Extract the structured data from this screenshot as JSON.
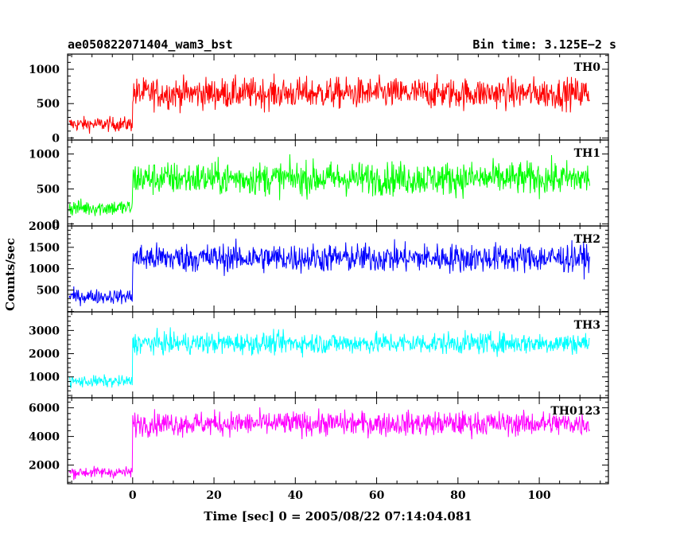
{
  "chart_data": {
    "type": "line",
    "title_left": "ae050822071404_wam3_bst",
    "title_right": "Bin time: 3.125E−2 s",
    "xlabel": "Time [sec] 0 = 2005/08/22 07:14:04.081",
    "ylabel": "Counts/sec",
    "xlim": [
      -16,
      117
    ],
    "x_ticks": [
      0,
      20,
      40,
      60,
      80,
      100
    ],
    "x_tick_labels": [
      "0",
      "20",
      "40",
      "60",
      "80",
      "100"
    ],
    "x_start": -15.6,
    "x_end": 112.5,
    "x_step": 0.125,
    "step_time": 0,
    "panels": [
      {
        "name": "TH0",
        "color": "#ff0000",
        "ylim": [
          -30,
          1220
        ],
        "y_ticks": [
          0,
          500,
          1000
        ],
        "y_tick_labels": [
          "0",
          "500",
          "1000"
        ],
        "pre_mean": 200,
        "pre_noise": 75,
        "post_mean": 650,
        "post_noise": 160
      },
      {
        "name": "TH1",
        "color": "#00ff00",
        "ylim": [
          -30,
          1200
        ],
        "y_ticks": [
          0,
          500,
          1000
        ],
        "y_tick_labels": [
          "0",
          "500",
          "1000"
        ],
        "pre_mean": 230,
        "pre_noise": 85,
        "post_mean": 650,
        "post_noise": 170
      },
      {
        "name": "TH2",
        "color": "#0000ff",
        "ylim": [
          -10,
          2000
        ],
        "y_ticks": [
          500,
          1000,
          1500,
          2000
        ],
        "y_tick_labels": [
          "500",
          "1000",
          "1500",
          "2000"
        ],
        "pre_mean": 350,
        "pre_noise": 120,
        "post_mean": 1250,
        "post_noise": 240
      },
      {
        "name": "TH3",
        "color": "#00ffff",
        "ylim": [
          100,
          3800
        ],
        "y_ticks": [
          1000,
          2000,
          3000
        ],
        "y_tick_labels": [
          "1000",
          "2000",
          "3000"
        ],
        "pre_mean": 800,
        "pre_noise": 180,
        "post_mean": 2450,
        "post_noise": 330
      },
      {
        "name": "TH0123",
        "color": "#ff00ff",
        "ylim": [
          700,
          6700
        ],
        "y_ticks": [
          2000,
          4000,
          6000
        ],
        "y_tick_labels": [
          "2000",
          "4000",
          "6000"
        ],
        "pre_mean": 1500,
        "pre_noise": 280,
        "post_mean": 4900,
        "post_noise": 600
      }
    ]
  }
}
